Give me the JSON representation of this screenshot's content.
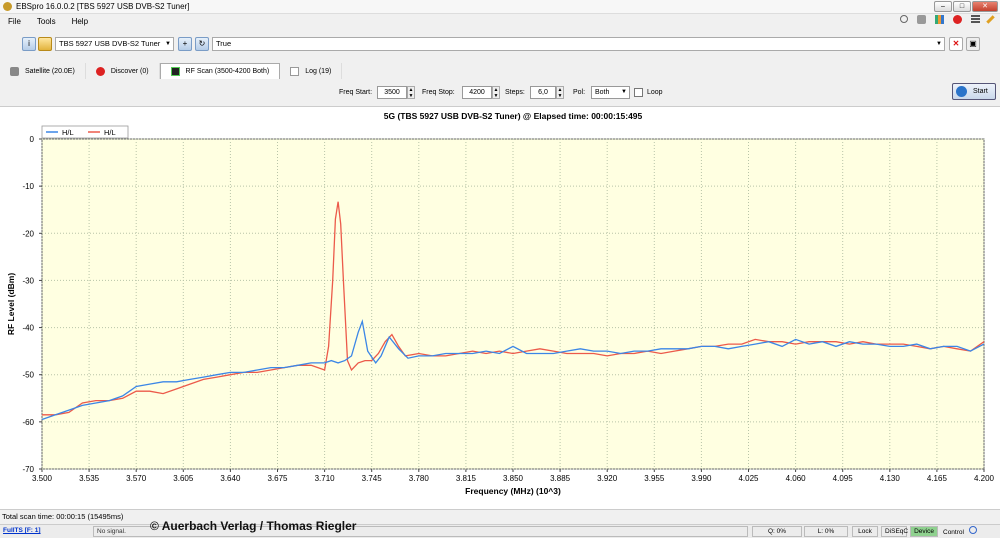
{
  "window": {
    "title": "EBSpro 16.0.0.2 [TBS 5927 USB DVB-S2 Tuner]"
  },
  "menu": {
    "items": [
      "File",
      "Tools",
      "Help"
    ]
  },
  "toolbar": {
    "tuner": "TBS 5927 USB DVB-S2 Tuner",
    "status_value": "True"
  },
  "tabs": [
    {
      "label": "Satellite (20.0E)"
    },
    {
      "label": "Discover (0)"
    },
    {
      "label": "RF Scan (3500-4200 Both)"
    },
    {
      "label": "Log (19)"
    }
  ],
  "params": {
    "freq_start_label": "Freq Start:",
    "freq_start": "3500",
    "freq_stop_label": "Freq Stop:",
    "freq_stop": "4200",
    "steps_label": "Steps:",
    "steps": "6,0",
    "pol_label": "Pol:",
    "pol": "Both",
    "loop_label": "Loop",
    "start_label": "Start"
  },
  "status": {
    "scan_time": "Total scan time: 00:00:15 (15495ms)",
    "fullts": "FullTS [F: 1]",
    "signal": "No signal.",
    "q": "Q: 0%",
    "l": "L: 0%",
    "lock": "Lock",
    "diseqc": "DiSEqC",
    "device": "Device",
    "control": "Control"
  },
  "watermark": "© Auerbach Verlag / Thomas Riegler",
  "colors": {
    "h_series": "#3b86e6",
    "l_series": "#ec5a4a",
    "plot_bg": "#ffffe1",
    "grid": "#b8c4a8"
  },
  "chart_data": {
    "type": "line",
    "title": "5G    (TBS 5927 USB DVB-S2 Tuner) @ Elapsed time: 00:00:15:495",
    "xlabel": "Frequency (MHz) (10^3)",
    "ylabel": "RF Level (dBm)",
    "xlim": [
      3.5,
      4.2
    ],
    "ylim": [
      -70,
      0
    ],
    "xticks": [
      "3.500",
      "3.535",
      "3.570",
      "3.605",
      "3.640",
      "3.675",
      "3.710",
      "3.745",
      "3.780",
      "3.815",
      "3.850",
      "3.885",
      "3.920",
      "3.955",
      "3.990",
      "4.025",
      "4.060",
      "4.095",
      "4.130",
      "4.165",
      "4.200"
    ],
    "yticks": [
      0,
      -10,
      -20,
      -30,
      -40,
      -50,
      -60,
      -70
    ],
    "grid": true,
    "legend": "top-left",
    "series": [
      {
        "name": "H/L",
        "color": "#3b86e6",
        "x": [
          3.5,
          3.51,
          3.52,
          3.53,
          3.54,
          3.55,
          3.56,
          3.57,
          3.58,
          3.59,
          3.6,
          3.61,
          3.62,
          3.63,
          3.64,
          3.65,
          3.66,
          3.67,
          3.68,
          3.69,
          3.7,
          3.71,
          3.715,
          3.72,
          3.725,
          3.73,
          3.735,
          3.738,
          3.742,
          3.748,
          3.752,
          3.758,
          3.765,
          3.772,
          3.78,
          3.79,
          3.8,
          3.81,
          3.82,
          3.83,
          3.84,
          3.85,
          3.86,
          3.87,
          3.88,
          3.89,
          3.9,
          3.91,
          3.92,
          3.93,
          3.94,
          3.95,
          3.96,
          3.97,
          3.98,
          3.99,
          4.0,
          4.01,
          4.02,
          4.03,
          4.04,
          4.05,
          4.06,
          4.07,
          4.08,
          4.09,
          4.1,
          4.11,
          4.12,
          4.13,
          4.14,
          4.15,
          4.16,
          4.17,
          4.18,
          4.19,
          4.2
        ],
        "y": [
          -59.5,
          -58.5,
          -57.5,
          -56.5,
          -56,
          -55.5,
          -54.5,
          -52.5,
          -52,
          -51.5,
          -51.5,
          -51,
          -50.5,
          -50,
          -49.5,
          -49.5,
          -49,
          -48.5,
          -48.5,
          -48,
          -47.5,
          -47.5,
          -47,
          -47.5,
          -47,
          -46,
          -41,
          -38.7,
          -45,
          -47.5,
          -46,
          -42,
          -44.5,
          -46.5,
          -46,
          -46,
          -45.5,
          -45.5,
          -45.5,
          -45,
          -45.5,
          -44,
          -45.5,
          -45.5,
          -45.5,
          -45,
          -44.5,
          -45,
          -45,
          -45.5,
          -45,
          -45,
          -44.5,
          -44.5,
          -44.5,
          -44,
          -44,
          -44.5,
          -44,
          -43.5,
          -43,
          -44,
          -42.5,
          -43.5,
          -43,
          -44,
          -43,
          -43.5,
          -43.5,
          -44,
          -44,
          -43.5,
          -44.5,
          -44,
          -44,
          -45,
          -43.5
        ]
      },
      {
        "name": "H/L",
        "color": "#ec5a4a",
        "x": [
          3.5,
          3.51,
          3.52,
          3.53,
          3.54,
          3.55,
          3.56,
          3.57,
          3.58,
          3.59,
          3.6,
          3.61,
          3.62,
          3.63,
          3.64,
          3.65,
          3.66,
          3.67,
          3.68,
          3.69,
          3.7,
          3.705,
          3.71,
          3.713,
          3.716,
          3.718,
          3.72,
          3.722,
          3.724,
          3.727,
          3.73,
          3.735,
          3.74,
          3.745,
          3.75,
          3.755,
          3.76,
          3.765,
          3.77,
          3.78,
          3.79,
          3.8,
          3.81,
          3.82,
          3.83,
          3.84,
          3.85,
          3.86,
          3.87,
          3.88,
          3.89,
          3.9,
          3.91,
          3.92,
          3.93,
          3.94,
          3.95,
          3.96,
          3.97,
          3.98,
          3.99,
          4.0,
          4.01,
          4.02,
          4.03,
          4.04,
          4.05,
          4.06,
          4.07,
          4.08,
          4.09,
          4.1,
          4.11,
          4.12,
          4.13,
          4.14,
          4.15,
          4.16,
          4.17,
          4.18,
          4.19,
          4.2
        ],
        "y": [
          -58.5,
          -58.5,
          -58,
          -56,
          -55.5,
          -55.5,
          -55,
          -53.5,
          -53.5,
          -54,
          -53,
          -52,
          -51,
          -50.5,
          -50,
          -49.5,
          -49.5,
          -49,
          -48.5,
          -48,
          -48,
          -48.5,
          -49,
          -44,
          -30,
          -17,
          -13.3,
          -18,
          -30,
          -47,
          -49,
          -47.5,
          -47,
          -47,
          -45.5,
          -43,
          -41.5,
          -44,
          -46,
          -45.5,
          -46,
          -46,
          -45.5,
          -45,
          -45.5,
          -45,
          -45.5,
          -45,
          -44.5,
          -45,
          -45.5,
          -45.5,
          -45.5,
          -46,
          -45.5,
          -45.5,
          -45,
          -45.5,
          -45,
          -44.5,
          -44,
          -44,
          -43.5,
          -43.5,
          -42.5,
          -43,
          -43,
          -43.5,
          -43,
          -43,
          -43,
          -43.5,
          -43,
          -43.5,
          -43.5,
          -43.5,
          -44,
          -44.5,
          -44,
          -44.5,
          -45,
          -43
        ]
      }
    ]
  }
}
